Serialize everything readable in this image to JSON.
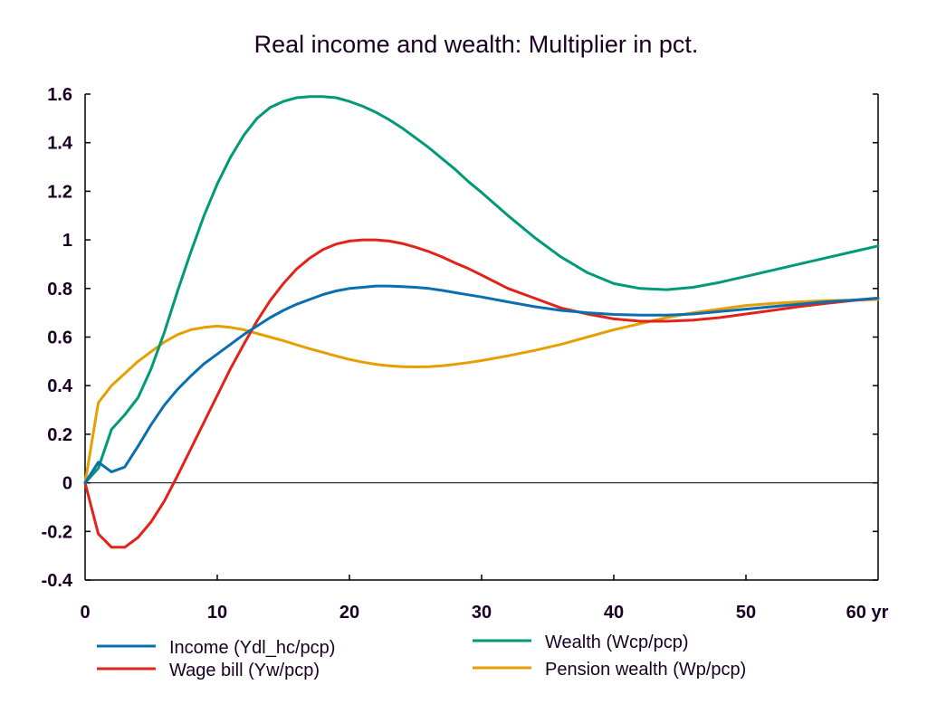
{
  "chart_data": {
    "type": "line",
    "title": "Real income and wealth: Multiplier in pct.",
    "xlabel": "",
    "ylabel": "",
    "x_unit_label": "yr",
    "xlim": [
      0,
      60
    ],
    "ylim": [
      -0.4,
      1.6
    ],
    "x_ticks": [
      0,
      10,
      20,
      30,
      40,
      50,
      60
    ],
    "x_tick_labels": [
      "0",
      "10",
      "20",
      "30",
      "40",
      "50",
      "60 yr"
    ],
    "y_ticks": [
      -0.4,
      -0.2,
      0,
      0.2,
      0.4,
      0.6,
      0.8,
      1,
      1.2,
      1.4,
      1.6
    ],
    "y_tick_labels": [
      "-0.4",
      "-0.2",
      "0",
      "0.2",
      "0.4",
      "0.6",
      "0.8",
      "1",
      "1.2",
      "1.4",
      "1.6"
    ],
    "grid": false,
    "zero_line": true,
    "legend_position": "bottom",
    "x": [
      0,
      1,
      2,
      3,
      4,
      5,
      6,
      7,
      8,
      9,
      10,
      11,
      12,
      13,
      14,
      15,
      16,
      17,
      18,
      19,
      20,
      21,
      22,
      23,
      24,
      25,
      26,
      27,
      28,
      29,
      30,
      32,
      34,
      36,
      38,
      40,
      42,
      44,
      46,
      48,
      50,
      52,
      54,
      56,
      58,
      60
    ],
    "series": [
      {
        "name": "Income (Ydl_hc/pcp)",
        "color": "#0a6fb0",
        "values": [
          0,
          0.085,
          0.045,
          0.065,
          0.15,
          0.24,
          0.32,
          0.385,
          0.44,
          0.49,
          0.53,
          0.57,
          0.61,
          0.645,
          0.68,
          0.71,
          0.735,
          0.755,
          0.775,
          0.79,
          0.8,
          0.805,
          0.81,
          0.81,
          0.808,
          0.805,
          0.8,
          0.792,
          0.783,
          0.774,
          0.765,
          0.745,
          0.725,
          0.71,
          0.7,
          0.693,
          0.69,
          0.69,
          0.695,
          0.705,
          0.715,
          0.725,
          0.735,
          0.745,
          0.752,
          0.76
        ]
      },
      {
        "name": "Wealth (Wcp/pcp)",
        "color": "#00997a",
        "values": [
          0,
          0.06,
          0.22,
          0.28,
          0.35,
          0.47,
          0.62,
          0.79,
          0.95,
          1.1,
          1.23,
          1.34,
          1.43,
          1.5,
          1.545,
          1.57,
          1.585,
          1.59,
          1.59,
          1.585,
          1.57,
          1.55,
          1.525,
          1.495,
          1.46,
          1.42,
          1.38,
          1.335,
          1.29,
          1.24,
          1.195,
          1.1,
          1.01,
          0.93,
          0.865,
          0.82,
          0.8,
          0.795,
          0.805,
          0.825,
          0.85,
          0.875,
          0.9,
          0.925,
          0.95,
          0.975
        ]
      },
      {
        "name": "Wage bill (Yw/pcp)",
        "color": "#e2231a",
        "values": [
          0,
          -0.21,
          -0.265,
          -0.265,
          -0.225,
          -0.16,
          -0.075,
          0.03,
          0.14,
          0.25,
          0.36,
          0.47,
          0.57,
          0.665,
          0.75,
          0.82,
          0.88,
          0.925,
          0.96,
          0.983,
          0.995,
          1,
          1,
          0.995,
          0.985,
          0.97,
          0.952,
          0.93,
          0.905,
          0.882,
          0.855,
          0.8,
          0.76,
          0.72,
          0.695,
          0.675,
          0.665,
          0.665,
          0.67,
          0.68,
          0.695,
          0.71,
          0.725,
          0.738,
          0.75,
          0.76
        ]
      },
      {
        "name": "Pension wealth (Wp/pcp)",
        "color": "#e69f00",
        "values": [
          0,
          0.33,
          0.4,
          0.45,
          0.5,
          0.54,
          0.58,
          0.61,
          0.63,
          0.64,
          0.645,
          0.64,
          0.63,
          0.615,
          0.6,
          0.585,
          0.568,
          0.552,
          0.537,
          0.522,
          0.508,
          0.497,
          0.488,
          0.482,
          0.478,
          0.477,
          0.478,
          0.482,
          0.488,
          0.495,
          0.503,
          0.523,
          0.545,
          0.57,
          0.6,
          0.63,
          0.655,
          0.68,
          0.7,
          0.715,
          0.73,
          0.738,
          0.745,
          0.75,
          0.752,
          0.755
        ]
      }
    ]
  },
  "legend": {
    "items": [
      {
        "label": "Income (Ydl_hc/pcp)",
        "color": "#0a6fb0"
      },
      {
        "label": "Wage bill (Yw/pcp)",
        "color": "#e2231a"
      },
      {
        "label": "Wealth (Wcp/pcp)",
        "color": "#00997a"
      },
      {
        "label": "Pension wealth (Wp/pcp)",
        "color": "#e69f00"
      }
    ]
  }
}
